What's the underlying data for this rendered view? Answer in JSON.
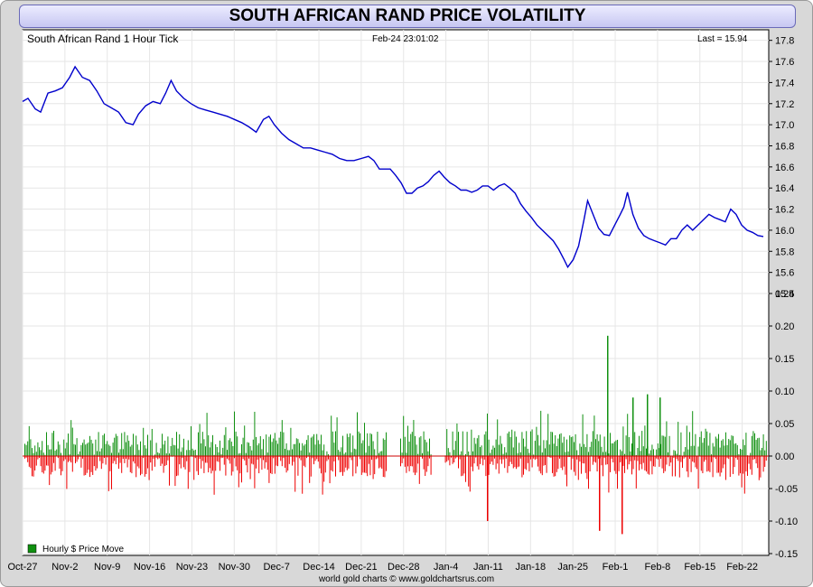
{
  "window_title": "SOUTH AFRICAN RAND PRICE VOLATILITY",
  "top_panel": {
    "series_label": "South African Rand 1 Hour Tick",
    "timestamp": "Feb-24  23:01:02",
    "last_label": "Last = 15.94"
  },
  "bottom_panel": {
    "legend_label": "Hourly $ Price Move",
    "legend_color": "#109010"
  },
  "footer": "world gold charts © www.goldchartsrus.com",
  "colors": {
    "price_line": "#0000cc",
    "up_bar": "#109010",
    "down_bar": "#ee0000",
    "zero_line": "#cc0000"
  },
  "chart_data": [
    {
      "type": "line",
      "x_tick_labels": [
        "Oct-27",
        "Nov-2",
        "Nov-9",
        "Nov-16",
        "Nov-23",
        "Nov-30",
        "Dec-7",
        "Dec-14",
        "Dec-21",
        "Dec-28",
        "Jan-4",
        "Jan-11",
        "Jan-18",
        "Jan-25",
        "Feb-1",
        "Feb-8",
        "Feb-15",
        "Feb-22"
      ],
      "y_ticks": [
        15.4,
        15.6,
        15.8,
        16.0,
        16.2,
        16.4,
        16.6,
        16.8,
        17.0,
        17.2,
        17.4,
        17.6,
        17.8
      ],
      "ylim": [
        15.4,
        17.9
      ],
      "grid": true,
      "series": [
        {
          "name": "South African Rand 1 Hour Tick",
          "points": [
            [
              0,
              17.22
            ],
            [
              0.3,
              17.25
            ],
            [
              0.7,
              17.15
            ],
            [
              1.0,
              17.12
            ],
            [
              1.4,
              17.3
            ],
            [
              1.8,
              17.32
            ],
            [
              2.2,
              17.35
            ],
            [
              2.6,
              17.45
            ],
            [
              2.9,
              17.55
            ],
            [
              3.3,
              17.45
            ],
            [
              3.7,
              17.42
            ],
            [
              4.1,
              17.32
            ],
            [
              4.5,
              17.2
            ],
            [
              4.9,
              17.16
            ],
            [
              5.3,
              17.12
            ],
            [
              5.7,
              17.02
            ],
            [
              6.1,
              17.0
            ],
            [
              6.4,
              17.1
            ],
            [
              6.8,
              17.18
            ],
            [
              7.2,
              17.22
            ],
            [
              7.6,
              17.2
            ],
            [
              7.9,
              17.3
            ],
            [
              8.2,
              17.42
            ],
            [
              8.5,
              17.32
            ],
            [
              8.9,
              17.25
            ],
            [
              9.3,
              17.2
            ],
            [
              9.7,
              17.16
            ],
            [
              10.1,
              17.14
            ],
            [
              10.5,
              17.12
            ],
            [
              10.9,
              17.1
            ],
            [
              11.3,
              17.08
            ],
            [
              11.7,
              17.05
            ],
            [
              12.1,
              17.02
            ],
            [
              12.5,
              16.98
            ],
            [
              12.9,
              16.93
            ],
            [
              13.3,
              17.05
            ],
            [
              13.6,
              17.08
            ],
            [
              13.9,
              17.0
            ],
            [
              14.3,
              16.92
            ],
            [
              14.7,
              16.86
            ],
            [
              15.1,
              16.82
            ],
            [
              15.5,
              16.78
            ],
            [
              15.9,
              16.78
            ],
            [
              16.3,
              16.76
            ],
            [
              16.7,
              16.74
            ],
            [
              17.1,
              16.72
            ],
            [
              17.5,
              16.68
            ],
            [
              17.9,
              16.66
            ],
            [
              18.3,
              16.66
            ],
            [
              18.7,
              16.68
            ],
            [
              19.1,
              16.7
            ],
            [
              19.4,
              16.66
            ],
            [
              19.7,
              16.58
            ],
            [
              20.0,
              16.58
            ],
            [
              20.3,
              16.58
            ],
            [
              20.6,
              16.52
            ],
            [
              20.9,
              16.45
            ],
            [
              21.2,
              16.35
            ],
            [
              21.5,
              16.35
            ],
            [
              21.8,
              16.4
            ],
            [
              22.1,
              16.42
            ],
            [
              22.4,
              16.46
            ],
            [
              22.7,
              16.52
            ],
            [
              23.0,
              16.56
            ],
            [
              23.3,
              16.5
            ],
            [
              23.6,
              16.45
            ],
            [
              23.9,
              16.42
            ],
            [
              24.2,
              16.38
            ],
            [
              24.5,
              16.38
            ],
            [
              24.8,
              16.36
            ],
            [
              25.1,
              16.38
            ],
            [
              25.4,
              16.42
            ],
            [
              25.7,
              16.42
            ],
            [
              26.0,
              16.38
            ],
            [
              26.3,
              16.42
            ],
            [
              26.6,
              16.44
            ],
            [
              26.9,
              16.4
            ],
            [
              27.2,
              16.35
            ],
            [
              27.5,
              16.25
            ],
            [
              27.8,
              16.18
            ],
            [
              28.1,
              16.12
            ],
            [
              28.4,
              16.05
            ],
            [
              28.7,
              16.0
            ],
            [
              29.0,
              15.95
            ],
            [
              29.3,
              15.9
            ],
            [
              29.6,
              15.82
            ],
            [
              29.9,
              15.72
            ],
            [
              30.1,
              15.65
            ],
            [
              30.4,
              15.72
            ],
            [
              30.7,
              15.85
            ],
            [
              31.0,
              16.1
            ],
            [
              31.2,
              16.28
            ],
            [
              31.5,
              16.15
            ],
            [
              31.8,
              16.02
            ],
            [
              32.1,
              15.96
            ],
            [
              32.4,
              15.95
            ],
            [
              32.7,
              16.05
            ],
            [
              33.0,
              16.15
            ],
            [
              33.2,
              16.22
            ],
            [
              33.4,
              16.36
            ],
            [
              33.7,
              16.15
            ],
            [
              34.0,
              16.02
            ],
            [
              34.3,
              15.95
            ],
            [
              34.6,
              15.92
            ],
            [
              34.9,
              15.9
            ],
            [
              35.2,
              15.88
            ],
            [
              35.5,
              15.86
            ],
            [
              35.8,
              15.92
            ],
            [
              36.1,
              15.92
            ],
            [
              36.4,
              16.0
            ],
            [
              36.7,
              16.05
            ],
            [
              37.0,
              16.0
            ],
            [
              37.3,
              16.05
            ],
            [
              37.6,
              16.1
            ],
            [
              37.9,
              16.15
            ],
            [
              38.2,
              16.12
            ],
            [
              38.5,
              16.1
            ],
            [
              38.8,
              16.08
            ],
            [
              39.1,
              16.2
            ],
            [
              39.4,
              16.15
            ],
            [
              39.7,
              16.05
            ],
            [
              40.0,
              16.0
            ],
            [
              40.3,
              15.98
            ],
            [
              40.6,
              15.95
            ],
            [
              40.9,
              15.94
            ]
          ]
        }
      ]
    },
    {
      "type": "bar",
      "y_ticks": [
        -0.15,
        -0.1,
        -0.05,
        0.0,
        0.05,
        0.1,
        0.15,
        0.2,
        0.25
      ],
      "ylim": [
        -0.15,
        0.25
      ],
      "grid": true,
      "series": [
        {
          "name": "Hourly $ Price Move",
          "color": "up_bar"
        }
      ],
      "notable_moves": [
        {
          "label": "Jan-11",
          "value": -0.1
        },
        {
          "label": "Jan-28",
          "value": -0.115
        },
        {
          "label": "Jan-29",
          "value": 0.185
        },
        {
          "label": "Jan-31",
          "value": -0.12
        },
        {
          "label": "Feb-2",
          "value": 0.09
        },
        {
          "label": "Feb-7",
          "value": 0.095
        },
        {
          "label": "Feb-8",
          "value": 0.09
        }
      ],
      "typical_range": [
        -0.06,
        0.07
      ]
    }
  ]
}
